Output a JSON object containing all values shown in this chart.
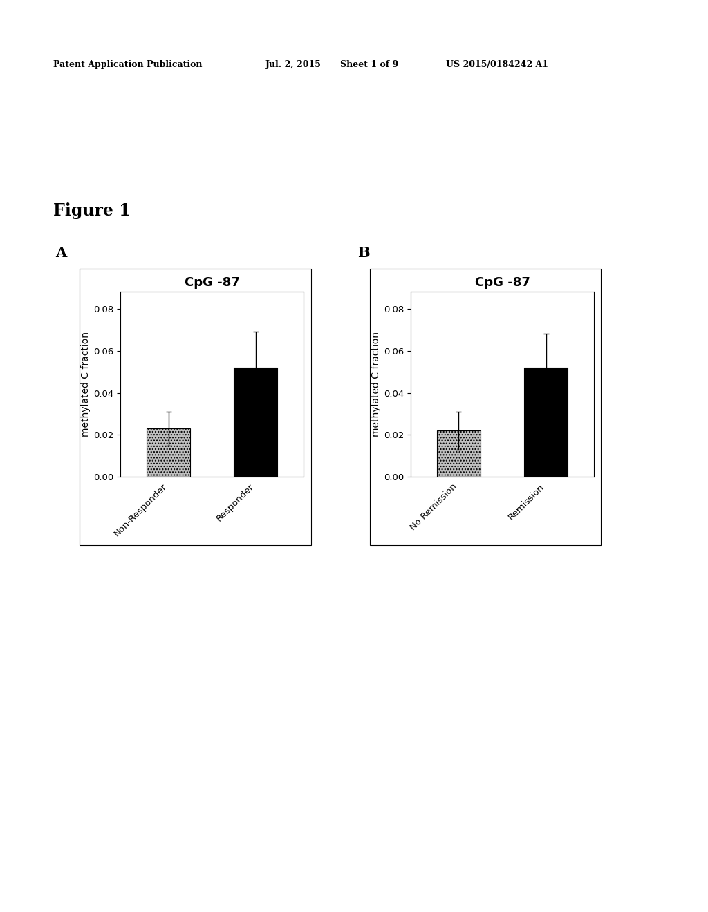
{
  "figure_label": "Figure 1",
  "panel_A_label": "A",
  "panel_B_label": "B",
  "title": "CpG -87",
  "ylabel": "methylated C fraction",
  "ylim": [
    0.0,
    0.088
  ],
  "yticks": [
    0.0,
    0.02,
    0.04,
    0.06,
    0.08
  ],
  "panel_A": {
    "categories": [
      "Non-Responder",
      "Responder"
    ],
    "values": [
      0.023,
      0.052
    ],
    "errors": [
      0.008,
      0.017
    ],
    "colors": [
      "#c0c0c0",
      "#000000"
    ],
    "hatch": [
      "....",
      ""
    ]
  },
  "panel_B": {
    "categories": [
      "No Remission",
      "Remission"
    ],
    "values": [
      0.022,
      0.052
    ],
    "errors": [
      0.009,
      0.016
    ],
    "colors": [
      "#c0c0c0",
      "#000000"
    ],
    "hatch": [
      "....",
      ""
    ]
  },
  "header_text": "Patent Application Publication",
  "header_date": "Jul. 2, 2015",
  "header_sheet": "Sheet 1 of 9",
  "header_patent": "US 2015/0184242 A1",
  "background_color": "#ffffff",
  "bar_width": 0.5,
  "title_fontsize": 13,
  "label_fontsize": 10,
  "tick_fontsize": 9.5,
  "panel_label_fontsize": 15,
  "figure_label_fontsize": 17
}
